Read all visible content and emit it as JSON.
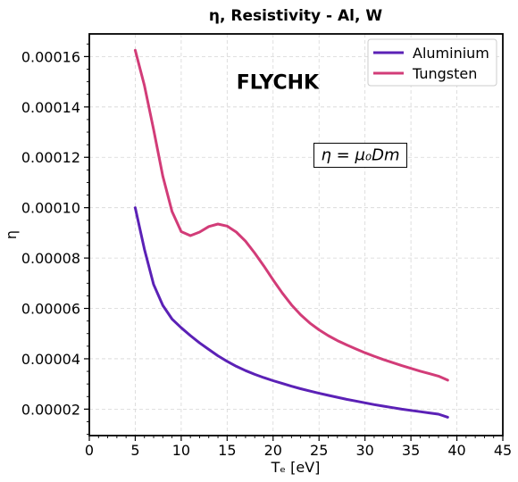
{
  "chart_data": {
    "type": "line",
    "title": "η, Resistivity - Al, W",
    "xlabel": "Tₑ [eV]",
    "ylabel": "η",
    "xlim": [
      0,
      45
    ],
    "ylim": [
      9.5e-06,
      0.000169
    ],
    "xticks": [
      0,
      5,
      10,
      15,
      20,
      25,
      30,
      35,
      40,
      45
    ],
    "yticks": [
      2e-05,
      4e-05,
      6e-05,
      8e-05,
      0.0001,
      0.00012,
      0.00014,
      0.00016
    ],
    "ytick_labels": [
      "0.00002",
      "0.00004",
      "0.00006",
      "0.00008",
      "0.00010",
      "0.00012",
      "0.00014",
      "0.00016"
    ],
    "grid": true,
    "legend_position": "top-right",
    "annotations": [
      {
        "text": "FLYCHK",
        "x": 20.5,
        "y": 0.00015,
        "style": "bold"
      },
      {
        "text": "η = μ₀Dm",
        "x": 29.5,
        "y": 0.000121,
        "style": "boxed-formula"
      }
    ],
    "series": [
      {
        "name": "Aluminium",
        "color": "#5b21b6",
        "x": [
          5,
          6,
          7,
          8,
          9,
          10,
          11,
          12,
          13,
          14,
          15,
          16,
          17,
          18,
          19,
          20,
          21,
          22,
          23,
          24,
          25,
          26,
          27,
          28,
          29,
          30,
          31,
          32,
          33,
          34,
          35,
          36,
          37,
          38,
          39
        ],
        "y": [
          0.0001,
          8.35e-05,
          6.95e-05,
          6.12e-05,
          5.58e-05,
          5.23e-05,
          4.92e-05,
          4.63e-05,
          4.37e-05,
          4.12e-05,
          3.9e-05,
          3.7e-05,
          3.53e-05,
          3.38e-05,
          3.25e-05,
          3.13e-05,
          3.02e-05,
          2.91e-05,
          2.81e-05,
          2.72e-05,
          2.63e-05,
          2.55e-05,
          2.47e-05,
          2.39e-05,
          2.32e-05,
          2.25e-05,
          2.18e-05,
          2.12e-05,
          2.06e-05,
          2e-05,
          1.95e-05,
          1.9e-05,
          1.85e-05,
          1.8e-05,
          1.68e-05
        ]
      },
      {
        "name": "Tungsten",
        "color": "#d23c78",
        "x": [
          5,
          6,
          7,
          8,
          9,
          10,
          11,
          12,
          13,
          14,
          15,
          16,
          17,
          18,
          19,
          20,
          21,
          22,
          23,
          24,
          25,
          26,
          27,
          28,
          29,
          30,
          31,
          32,
          33,
          34,
          35,
          36,
          37,
          38,
          39
        ],
        "y": [
          0.0001625,
          0.0001485,
          0.000131,
          0.0001125,
          9.85e-05,
          9.05e-05,
          8.89e-05,
          9.03e-05,
          9.25e-05,
          9.35e-05,
          9.27e-05,
          9.03e-05,
          8.67e-05,
          8.2e-05,
          7.68e-05,
          7.13e-05,
          6.61e-05,
          6.14e-05,
          5.75e-05,
          5.42e-05,
          5.15e-05,
          4.92e-05,
          4.72e-05,
          4.55e-05,
          4.39e-05,
          4.24e-05,
          4.1e-05,
          3.97e-05,
          3.85e-05,
          3.73e-05,
          3.62e-05,
          3.51e-05,
          3.41e-05,
          3.31e-05,
          3.15e-05
        ]
      }
    ]
  }
}
